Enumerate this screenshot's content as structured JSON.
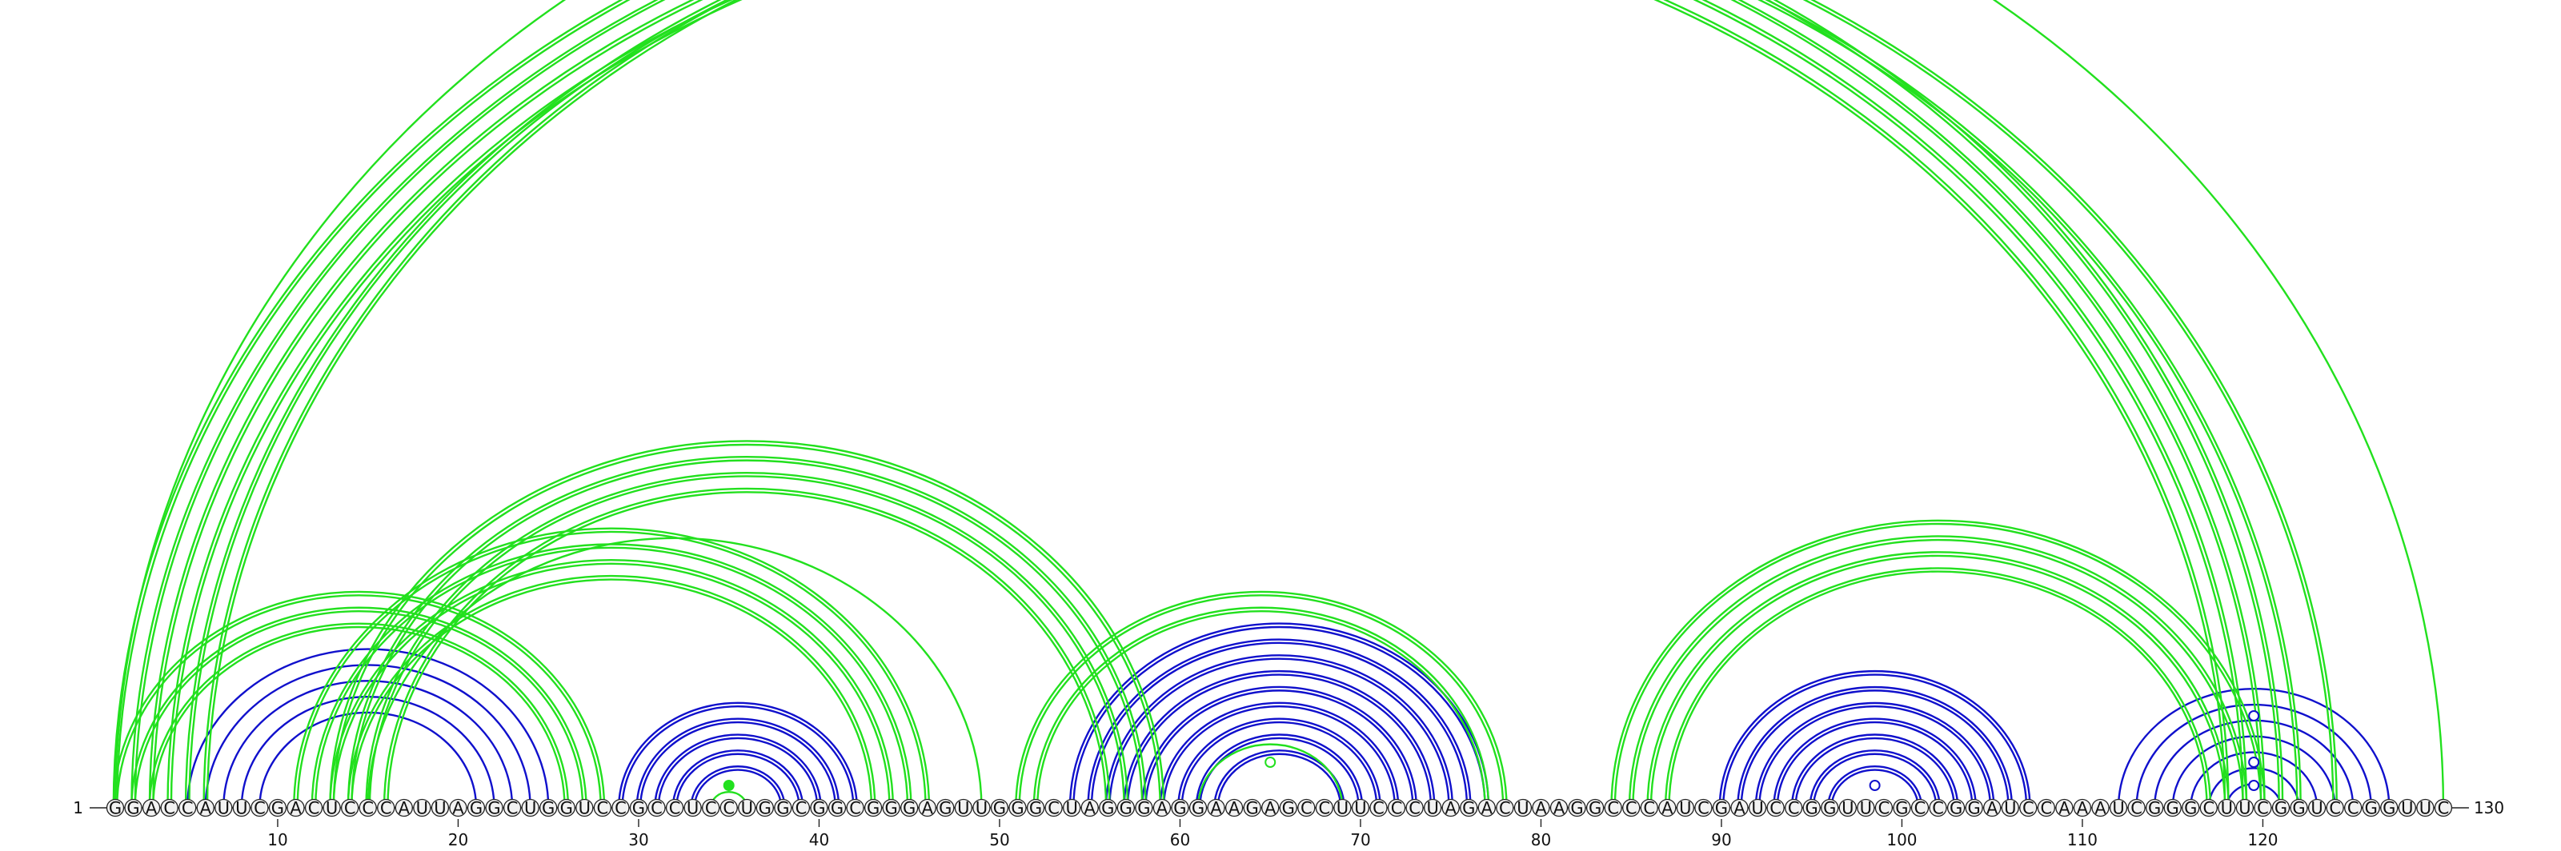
{
  "sequence": {
    "bases": "GGACCAUUCGACUCCCAUUAGGCUGGUCCGCCUCCUGGCGGCGGGAGUUGGGCUAGGGAGGAAGAGCCUUCCCUAGACUAAGGCCCAUCGAUCCGGUUCGCCGGAUCCAAAUCGGGCUUCGGUCCGGUUC",
    "length": 130,
    "start_label": "1",
    "end_label": "130",
    "ticks": [
      10,
      20,
      30,
      40,
      50,
      60,
      70,
      80,
      90,
      100,
      110,
      120
    ]
  },
  "colors": {
    "green": "#22e01e",
    "blue": "#1010cc",
    "node_fill": "#f2f2f2",
    "node_stroke": "#222222"
  },
  "arcs": [
    {
      "color": "blue",
      "double": false,
      "pairs": [
        [
          5,
          25
        ],
        [
          6,
          24
        ],
        [
          7,
          23
        ],
        [
          8,
          22
        ],
        [
          9,
          21
        ]
      ]
    },
    {
      "color": "blue",
      "double": true,
      "pairs": [
        [
          29,
          42
        ],
        [
          30,
          41
        ],
        [
          31,
          40
        ],
        [
          32,
          39
        ],
        [
          33,
          38
        ]
      ]
    },
    {
      "color": "blue",
      "double": true,
      "pairs": [
        [
          54,
          77
        ],
        [
          55,
          76
        ],
        [
          56,
          75
        ],
        [
          57,
          74
        ],
        [
          58,
          73
        ],
        [
          59,
          72
        ],
        [
          60,
          71
        ],
        [
          61,
          70
        ],
        [
          62,
          69
        ]
      ]
    },
    {
      "color": "blue",
      "double": true,
      "pairs": [
        [
          90,
          107
        ],
        [
          91,
          106
        ],
        [
          92,
          105
        ],
        [
          93,
          104
        ],
        [
          94,
          103
        ],
        [
          95,
          102
        ],
        [
          96,
          101
        ]
      ]
    },
    {
      "color": "blue",
      "double": false,
      "pairs": [
        [
          112,
          127
        ],
        [
          113,
          126
        ],
        [
          114,
          125
        ],
        [
          115,
          124
        ],
        [
          116,
          123
        ],
        [
          117,
          122
        ],
        [
          118,
          121
        ]
      ]
    },
    {
      "color": "green",
      "double": true,
      "pairs": [
        [
          1,
          121
        ],
        [
          2,
          120
        ],
        [
          3,
          119
        ],
        [
          4,
          118
        ]
      ]
    },
    {
      "color": "green",
      "double": true,
      "pairs": [
        [
          5,
          122
        ],
        [
          6,
          124
        ]
      ]
    },
    {
      "color": "green",
      "double": false,
      "pairs": [
        [
          1,
          130
        ]
      ]
    },
    {
      "color": "green",
      "double": true,
      "pairs": [
        [
          1,
          28
        ],
        [
          2,
          27
        ],
        [
          3,
          26
        ]
      ]
    },
    {
      "color": "green",
      "double": true,
      "pairs": [
        [
          11,
          46
        ],
        [
          12,
          45
        ],
        [
          13,
          44
        ],
        [
          14,
          43
        ]
      ]
    },
    {
      "color": "green",
      "double": true,
      "pairs": [
        [
          13,
          59
        ],
        [
          14,
          58
        ],
        [
          15,
          57
        ],
        [
          16,
          56
        ]
      ]
    },
    {
      "color": "green",
      "double": false,
      "pairs": [
        [
          15,
          49
        ]
      ]
    },
    {
      "color": "green",
      "double": true,
      "pairs": [
        [
          51,
          78
        ],
        [
          52,
          77
        ]
      ]
    },
    {
      "color": "green",
      "double": false,
      "pairs": [
        [
          61,
          69
        ]
      ]
    },
    {
      "color": "green",
      "double": true,
      "pairs": [
        [
          84,
          120
        ],
        [
          85,
          119
        ],
        [
          86,
          118
        ],
        [
          87,
          117
        ]
      ]
    },
    {
      "color": "green",
      "double": false,
      "pairs": [
        [
          34,
          36
        ]
      ]
    }
  ],
  "markers": [
    {
      "pos": 35,
      "color": "green",
      "filled": true,
      "level": 1
    },
    {
      "pos": 65,
      "color": "green",
      "filled": false,
      "level": 2
    },
    {
      "pos": 98.5,
      "color": "blue",
      "filled": false,
      "level": 1
    },
    {
      "pos": 119.5,
      "color": "blue",
      "filled": false,
      "level": 1
    },
    {
      "pos": 119.5,
      "color": "blue",
      "filled": false,
      "level": 2
    },
    {
      "pos": 119.5,
      "color": "blue",
      "filled": false,
      "level": 4
    }
  ]
}
